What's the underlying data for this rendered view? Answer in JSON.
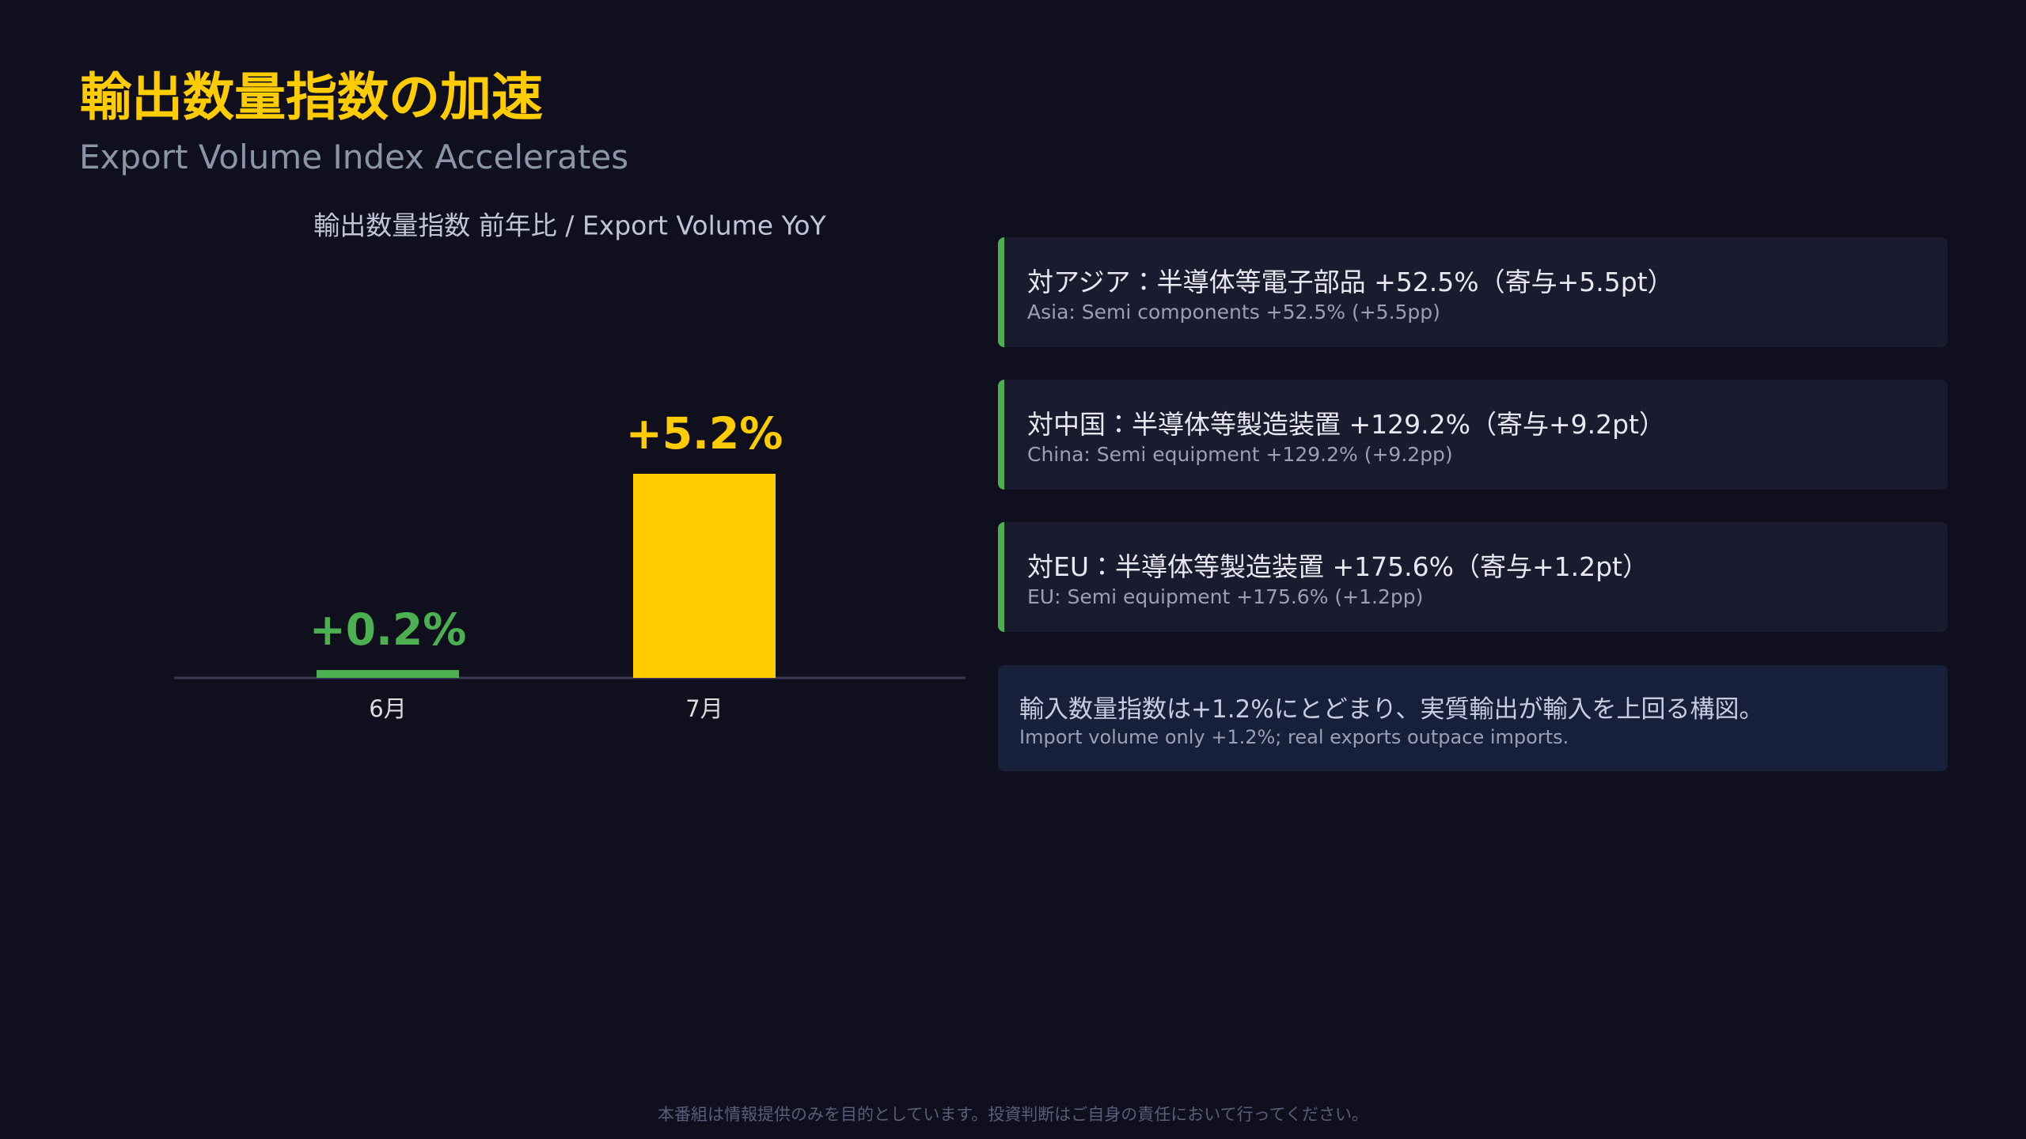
{
  "header": {
    "title": "輸出数量指数の加速",
    "subtitle": "Export Volume Index Accelerates"
  },
  "chart_data": {
    "type": "bar",
    "title": "輸出数量指数 前年比 / Export Volume YoY",
    "categories": [
      "6月",
      "7月"
    ],
    "values": [
      0.2,
      5.2
    ],
    "value_labels": [
      "+0.2%",
      "+5.2%"
    ],
    "colors": [
      "#4caf50",
      "#ffcc00"
    ]
  },
  "cards": [
    {
      "title": "対アジア：半導体等電子部品 +52.5%（寄与+5.5pt）",
      "subtitle": "Asia: Semi components +52.5% (+5.5pp)"
    },
    {
      "title": "対中国：半導体等製造装置 +129.2%（寄与+9.2pt）",
      "subtitle": "China: Semi equipment +129.2% (+9.2pp)"
    },
    {
      "title": "対EU：半導体等製造装置 +175.6%（寄与+1.2pt）",
      "subtitle": "EU: Semi equipment +175.6% (+1.2pp)"
    }
  ],
  "note": {
    "title": "輸入数量指数は+1.2%にとどまり、実質輸出が輸入を上回る構図。",
    "subtitle": "Import volume only +1.2%; real exports outpace imports."
  },
  "footer": "本番組は情報提供のみを目的としています。投資判断はご自身の責任において行ってください。"
}
